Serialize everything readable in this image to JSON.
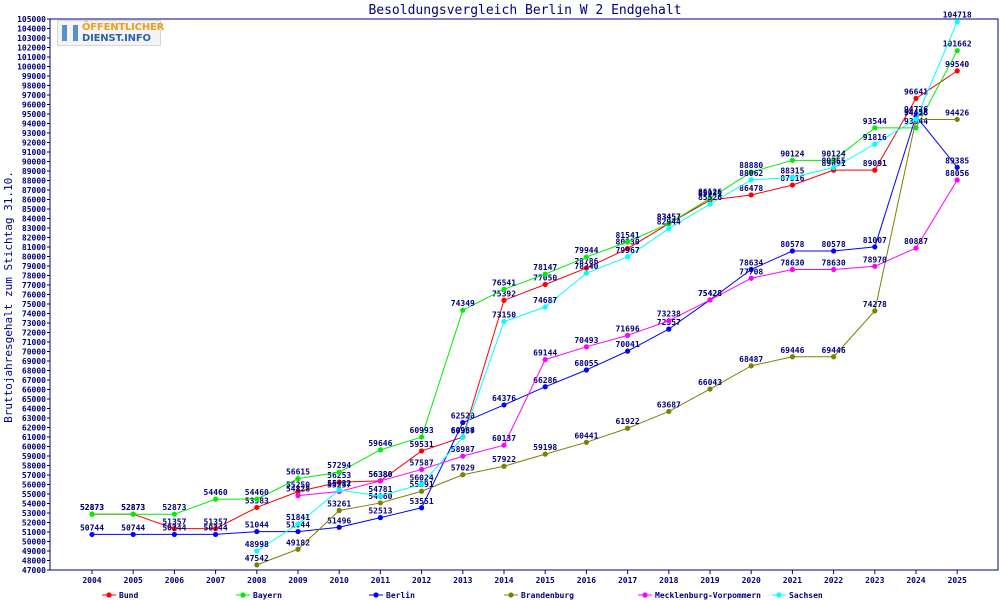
{
  "logo": {
    "line1": "ÖFFENTLICHER",
    "line2": "DIENST.INFO"
  },
  "chart_data": {
    "type": "line",
    "title": "Besoldungsvergleich Berlin W 2 Endgehalt",
    "ylabel": "Bruttojahresgehalt zum Stichtag 31.10.",
    "xlabel": "",
    "ylim": [
      47000,
      105000
    ],
    "ytick_step": 1000,
    "grid": false,
    "legend_position": "bottom",
    "categories": [
      "2004",
      "2005",
      "2006",
      "2007",
      "2008",
      "2009",
      "2010",
      "2011",
      "2012",
      "2013",
      "2014",
      "2015",
      "2016",
      "2017",
      "2018",
      "2019",
      "2020",
      "2021",
      "2022",
      "2023",
      "2024",
      "2025"
    ],
    "series": [
      {
        "name": "Bund",
        "color": "#ff0000",
        "values": [
          52873,
          52873,
          51357,
          51357,
          53583,
          55250,
          56253,
          56380,
          59531,
          60986,
          75392,
          77050,
          78786,
          80830,
          83457,
          85931,
          86478,
          87516,
          89091,
          89091,
          96641,
          99540
        ],
        "labels": [
          "52873",
          "52873",
          "51357",
          "51357",
          "53583",
          "55250",
          "56253",
          "56380",
          "59531",
          "60986",
          "75392",
          "77050",
          "78786",
          "80830",
          "83457",
          "85931",
          "86478",
          "87516",
          "89091",
          "89091",
          "96641",
          "99540"
        ]
      },
      {
        "name": "Bayern",
        "color": "#00ee00",
        "values": [
          52873,
          52873,
          52873,
          54460,
          54460,
          56615,
          57294,
          59646,
          60993,
          74349,
          76541,
          78147,
          79944,
          81541,
          83457,
          86126,
          88880,
          90124,
          90124,
          93544,
          93544,
          101662
        ],
        "labels": [
          "52873",
          "52873",
          "52873",
          "54460",
          "54460",
          "56615",
          "57294",
          "59646",
          "60993",
          "74349",
          "76541",
          "78147",
          "79944",
          "81541",
          "83457",
          "86126",
          "88880",
          "90124",
          "90124",
          "93544",
          "93544",
          "101662"
        ]
      },
      {
        "name": "Berlin",
        "color": "#0000ff",
        "values": [
          50744,
          50744,
          50744,
          50744,
          51044,
          51044,
          51496,
          52513,
          53551,
          62520,
          64376,
          66286,
          68055,
          70041,
          72357,
          75428,
          78634,
          80578,
          80578,
          81007,
          94776,
          89385
        ],
        "labels": [
          "50744",
          "50744",
          "50744",
          "50744",
          "51044",
          "51044",
          "51496",
          "52513",
          "53551",
          "62520",
          "64376",
          "66286",
          "68055",
          "70041",
          "72357",
          "75428",
          "78634",
          "80578",
          "80578",
          "81007",
          "94776",
          "89385"
        ]
      },
      {
        "name": "Brandenburg",
        "color": "#808000",
        "values": [
          null,
          null,
          null,
          null,
          47542,
          49182,
          53261,
          54060,
          55291,
          57029,
          57922,
          59198,
          60441,
          61922,
          63687,
          66043,
          68487,
          69446,
          69446,
          74278,
          94426,
          94426
        ],
        "labels": [
          "",
          "",
          "",
          "",
          "47542",
          "49182",
          "53261",
          "54060",
          "55291",
          "57029",
          "57922",
          "59198",
          "60441",
          "61922",
          "63687",
          "66043",
          "68487",
          "69446",
          "69446",
          "74278",
          "94426",
          "94426"
        ]
      },
      {
        "name": "Mecklenburg-Vorpommern",
        "color": "#ff00ff",
        "values": [
          null,
          null,
          null,
          null,
          null,
          54828,
          55257,
          56380,
          57587,
          58987,
          60137,
          69144,
          70493,
          71696,
          73238,
          75428,
          77708,
          78630,
          78630,
          78970,
          80887,
          88056
        ],
        "labels": [
          "",
          "",
          "",
          "",
          "",
          "54828",
          "55257",
          "56380",
          "57587",
          "58987",
          "60137",
          "69144",
          "70493",
          "71696",
          "73238",
          "75428",
          "77708",
          "78630",
          "78630",
          "78970",
          "80887",
          "88056"
        ]
      },
      {
        "name": "Sachsen",
        "color": "#00ffff",
        "values": [
          null,
          null,
          null,
          null,
          48998,
          51841,
          55432,
          54781,
          56024,
          60957,
          73150,
          74687,
          78240,
          79967,
          82944,
          85526,
          88062,
          88315,
          89365,
          91816,
          94458,
          104718
        ],
        "labels": [
          "",
          "",
          "",
          "",
          "48998",
          "51841",
          "55432",
          "54781",
          "56024",
          "60957",
          "73150",
          "74687",
          "78240",
          "79967",
          "82944",
          "85526",
          "88062",
          "88315",
          "89365",
          "91816",
          "94458",
          "104718"
        ]
      }
    ]
  }
}
